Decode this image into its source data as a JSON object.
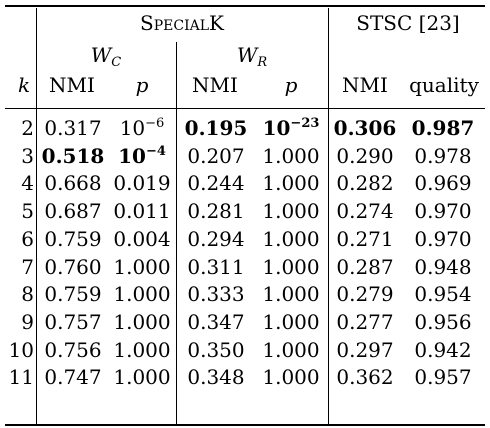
{
  "header": {
    "group1": "SpecialK",
    "group2": "STSC [23]",
    "sub1": {
      "base": "W",
      "sub": "C"
    },
    "sub2": {
      "base": "W",
      "sub": "R"
    },
    "k": "k",
    "nmi": "NMI",
    "p": "p",
    "quality": "quality"
  },
  "rows": [
    {
      "k": "2",
      "wc_nmi": "0.317",
      "wc_p": {
        "base": "10",
        "exp": "−6"
      },
      "wr_nmi": "0.195",
      "wr_p": {
        "base": "10",
        "exp": "−23"
      },
      "st_nmi": "0.306",
      "st_q": "0.987",
      "bold": [
        "wr_nmi",
        "wr_p",
        "st_nmi",
        "st_q"
      ]
    },
    {
      "k": "3",
      "wc_nmi": "0.518",
      "wc_p": {
        "base": "10",
        "exp": "−4"
      },
      "wr_nmi": "0.207",
      "wr_p": "1.000",
      "st_nmi": "0.290",
      "st_q": "0.978",
      "bold": [
        "wc_nmi",
        "wc_p"
      ]
    },
    {
      "k": "4",
      "wc_nmi": "0.668",
      "wc_p": "0.019",
      "wr_nmi": "0.244",
      "wr_p": "1.000",
      "st_nmi": "0.282",
      "st_q": "0.969",
      "bold": []
    },
    {
      "k": "5",
      "wc_nmi": "0.687",
      "wc_p": "0.011",
      "wr_nmi": "0.281",
      "wr_p": "1.000",
      "st_nmi": "0.274",
      "st_q": "0.970",
      "bold": []
    },
    {
      "k": "6",
      "wc_nmi": "0.759",
      "wc_p": "0.004",
      "wr_nmi": "0.294",
      "wr_p": "1.000",
      "st_nmi": "0.271",
      "st_q": "0.970",
      "bold": []
    },
    {
      "k": "7",
      "wc_nmi": "0.760",
      "wc_p": "1.000",
      "wr_nmi": "0.311",
      "wr_p": "1.000",
      "st_nmi": "0.287",
      "st_q": "0.948",
      "bold": []
    },
    {
      "k": "8",
      "wc_nmi": "0.759",
      "wc_p": "1.000",
      "wr_nmi": "0.333",
      "wr_p": "1.000",
      "st_nmi": "0.279",
      "st_q": "0.954",
      "bold": []
    },
    {
      "k": "9",
      "wc_nmi": "0.757",
      "wc_p": "1.000",
      "wr_nmi": "0.347",
      "wr_p": "1.000",
      "st_nmi": "0.277",
      "st_q": "0.956",
      "bold": []
    },
    {
      "k": "10",
      "wc_nmi": "0.756",
      "wc_p": "1.000",
      "wr_nmi": "0.350",
      "wr_p": "1.000",
      "st_nmi": "0.297",
      "st_q": "0.942",
      "bold": []
    },
    {
      "k": "11",
      "wc_nmi": "0.747",
      "wc_p": "1.000",
      "wr_nmi": "0.348",
      "wr_p": "1.000",
      "st_nmi": "0.362",
      "st_q": "0.957",
      "bold": []
    }
  ]
}
